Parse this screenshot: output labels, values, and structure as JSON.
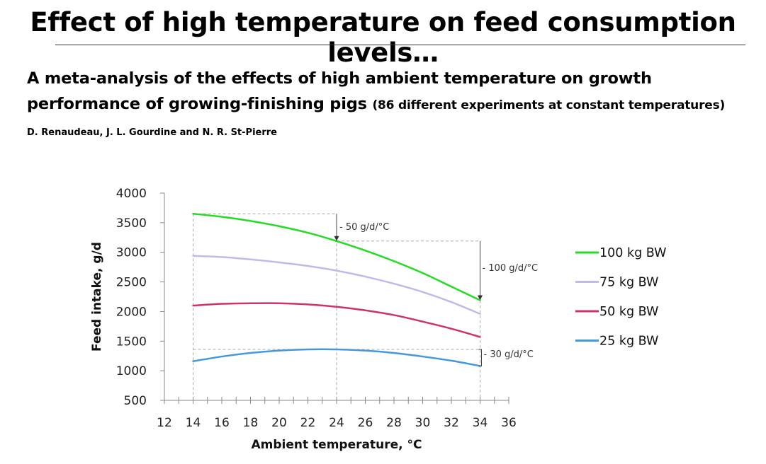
{
  "slide": {
    "title": "Effect of high temperature on feed consumption levels…",
    "subtitle_line1": "A meta-analysis of the effects of high ambient temperature on growth",
    "subtitle_line2": "performance of growing-finishing pigs",
    "subtitle_note": "(86 different experiments at constant temperatures)",
    "authors": "D. Renaudeau, J. L. Gourdine and N. R. St-Pierre"
  },
  "chart_data": {
    "type": "line",
    "title": "",
    "xlabel": "Ambient temperature, °C",
    "ylabel": "Feed intake, g/d",
    "xlim": [
      12,
      36
    ],
    "ylim": [
      500,
      4000
    ],
    "xticks": [
      12,
      14,
      16,
      18,
      20,
      22,
      24,
      26,
      28,
      30,
      32,
      34,
      36
    ],
    "yticks": [
      500,
      1000,
      1500,
      2000,
      2500,
      3000,
      3500,
      4000
    ],
    "grid": false,
    "legend_position": "right",
    "series": [
      {
        "name": "100 kg BW",
        "color": "#22dd22",
        "x": [
          14,
          16,
          18,
          20,
          22,
          24,
          26,
          28,
          30,
          32,
          34
        ],
        "values": [
          3650,
          3600,
          3530,
          3440,
          3330,
          3190,
          3030,
          2850,
          2650,
          2420,
          2190
        ]
      },
      {
        "name": "75 kg BW",
        "color": "#c4b8e8",
        "x": [
          14,
          16,
          18,
          20,
          22,
          24,
          26,
          28,
          30,
          32,
          34
        ],
        "values": [
          2940,
          2920,
          2880,
          2830,
          2770,
          2690,
          2590,
          2470,
          2330,
          2160,
          1960
        ]
      },
      {
        "name": "50 kg BW",
        "color": "#cc3366",
        "x": [
          14,
          16,
          18,
          20,
          22,
          24,
          26,
          28,
          30,
          32,
          34
        ],
        "values": [
          2100,
          2130,
          2140,
          2140,
          2120,
          2080,
          2020,
          1940,
          1830,
          1710,
          1570
        ]
      },
      {
        "name": "25 kg BW",
        "color": "#4499dd",
        "x": [
          14,
          16,
          18,
          20,
          22,
          24,
          26,
          28,
          30,
          32,
          34
        ],
        "values": [
          1160,
          1240,
          1300,
          1340,
          1360,
          1360,
          1340,
          1300,
          1240,
          1170,
          1080
        ]
      }
    ],
    "annotations": [
      {
        "text": "- 50 g/d/°C",
        "from": [
          14,
          3650
        ],
        "to": [
          24,
          3190
        ]
      },
      {
        "text": "- 100 g/d/°C",
        "from": [
          24,
          3190
        ],
        "to": [
          34,
          2190
        ]
      },
      {
        "text": "- 30 g/d/°C",
        "from": [
          14,
          1360
        ],
        "to": [
          34,
          1080
        ]
      }
    ]
  }
}
